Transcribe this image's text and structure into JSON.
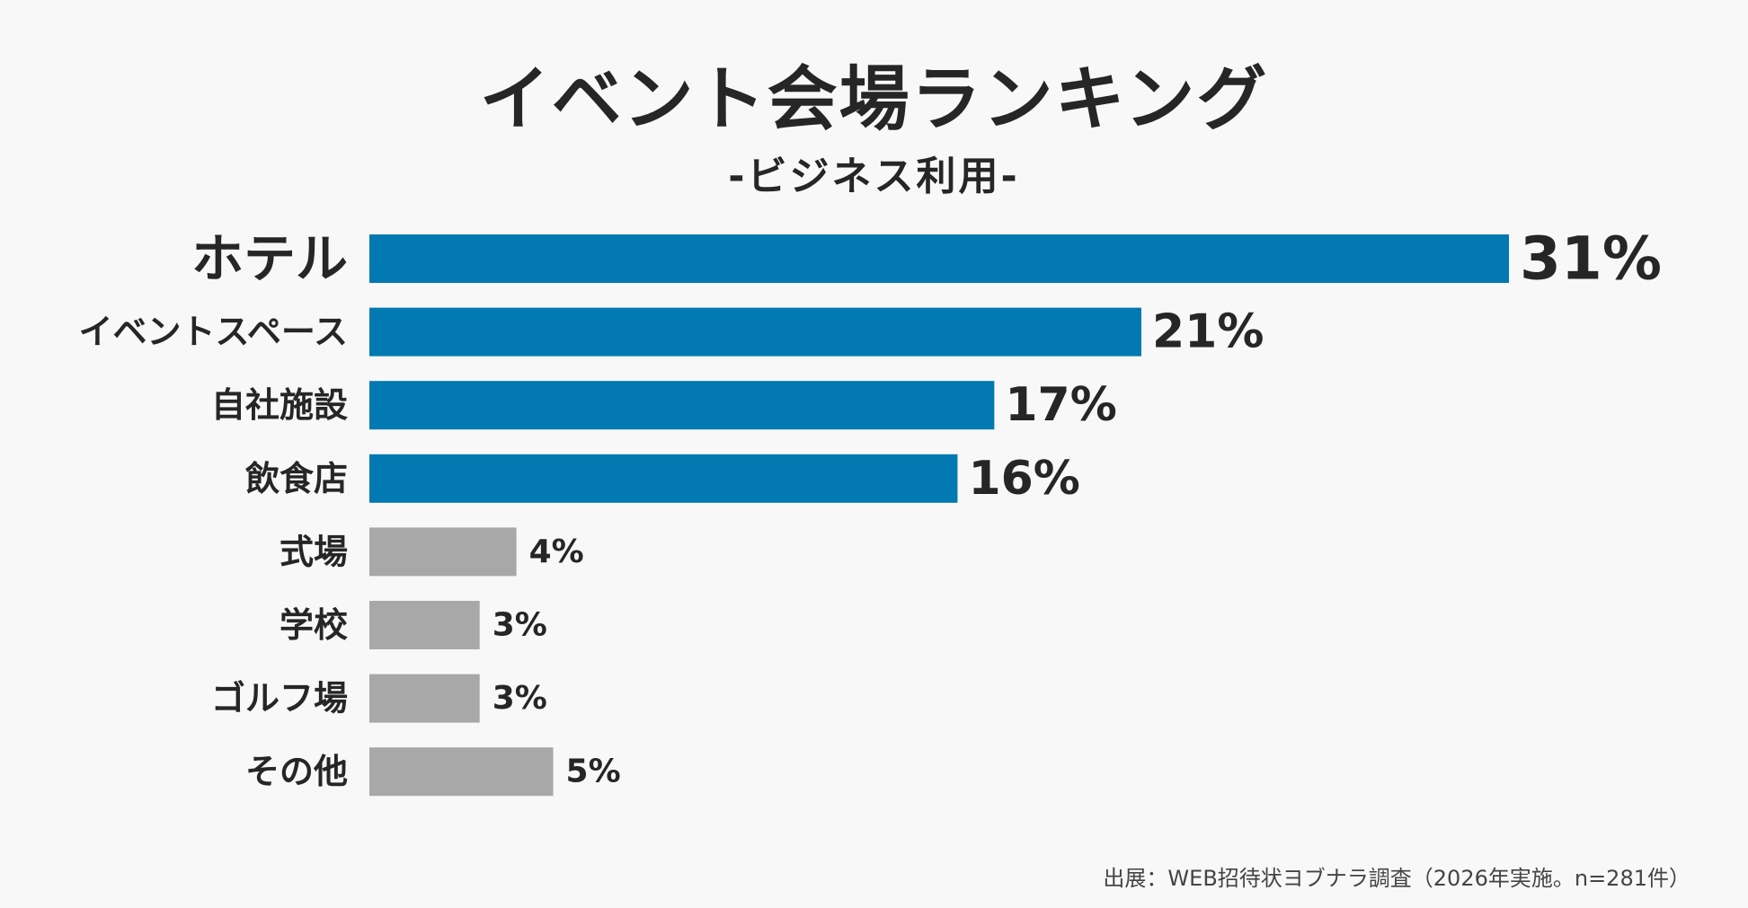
{
  "chart_data": {
    "type": "bar",
    "orientation": "horizontal",
    "title": "イベント会場ランキング",
    "subtitle": "-ビジネス利用-",
    "categories": [
      "ホテル",
      "イベントスペース",
      "自社施設",
      "飲食店",
      "式場",
      "学校",
      "ゴルフ場",
      "その他"
    ],
    "values": [
      31,
      21,
      17,
      16,
      4,
      3,
      3,
      5
    ],
    "value_labels": [
      "31%",
      "21%",
      "17%",
      "16%",
      "4%",
      "3%",
      "3%",
      "5%"
    ],
    "highlight": [
      true,
      true,
      true,
      true,
      false,
      false,
      false,
      false
    ],
    "unit": "%",
    "xlabel": "",
    "ylabel": "",
    "xlim": [
      0,
      31
    ],
    "grid": false,
    "legend": "none"
  },
  "colors": {
    "highlight": "#0279b0",
    "muted": "#a8a8a8",
    "text": "#262626",
    "background": "#f8f8f8"
  },
  "source": "出展：WEB招待状ヨブナラ調査（2026年実施。n=281件）"
}
